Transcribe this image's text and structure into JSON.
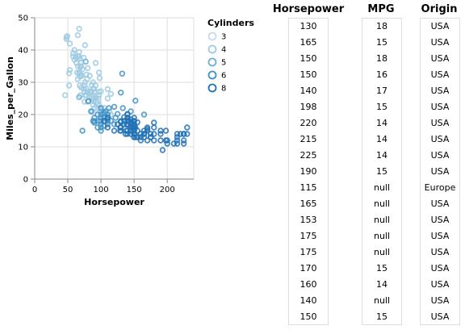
{
  "chart_data": {
    "type": "scatter",
    "xlabel": "Horsepower",
    "ylabel": "Miles_per_Gallon",
    "xlim": [
      0,
      240
    ],
    "ylim": [
      0,
      50
    ],
    "x_ticks": [
      "0",
      "50",
      "100",
      "150",
      "200"
    ],
    "y_ticks": [
      "0",
      "10",
      "20",
      "30",
      "40",
      "50"
    ],
    "grid": true,
    "legend": {
      "title": "Cylinders",
      "placement": "right",
      "entries": [
        "3",
        "4",
        "5",
        "6",
        "8"
      ]
    },
    "colors": {
      "3": "#c6dbef",
      "4": "#9ecae1",
      "5": "#6baed6",
      "6": "#4292c6",
      "8": "#2171b5"
    },
    "series": [
      {
        "name": "4",
        "points": [
          [
            46,
            26
          ],
          [
            48,
            43.4
          ],
          [
            48,
            44
          ],
          [
            49,
            44.3
          ],
          [
            52,
            29
          ],
          [
            52,
            32.8
          ],
          [
            53,
            33.8
          ],
          [
            58,
            39
          ],
          [
            60,
            37
          ],
          [
            62,
            37.7
          ],
          [
            63,
            36
          ],
          [
            65,
            38
          ],
          [
            65,
            35
          ],
          [
            65,
            31
          ],
          [
            65,
            44.6
          ],
          [
            67,
            39.4
          ],
          [
            67,
            33
          ],
          [
            67,
            38
          ],
          [
            67,
            46.6
          ],
          [
            68,
            29
          ],
          [
            68,
            31.8
          ],
          [
            68,
            37.3
          ],
          [
            68,
            32.9
          ],
          [
            69,
            34.7
          ],
          [
            69,
            26
          ],
          [
            70,
            36.1
          ],
          [
            70,
            32.3
          ],
          [
            70,
            28.4
          ],
          [
            70,
            35
          ],
          [
            71,
            32
          ],
          [
            72,
            34.1
          ],
          [
            74,
            28
          ],
          [
            74,
            37.6
          ],
          [
            75,
            29
          ],
          [
            75,
            24
          ],
          [
            75,
            27
          ],
          [
            76,
            30
          ],
          [
            76,
            26
          ],
          [
            78,
            28
          ],
          [
            78,
            32.4
          ],
          [
            78,
            26
          ],
          [
            79,
            31
          ],
          [
            80,
            27.2
          ],
          [
            80,
            34.4
          ],
          [
            80,
            24
          ],
          [
            81,
            26.6
          ],
          [
            83,
            32
          ],
          [
            84,
            27
          ],
          [
            85,
            27
          ],
          [
            86,
            25.5
          ],
          [
            86,
            29.1
          ],
          [
            87,
            21
          ],
          [
            88,
            23
          ],
          [
            88,
            28
          ],
          [
            88,
            26
          ],
          [
            88,
            25
          ],
          [
            88,
            30
          ],
          [
            90,
            22
          ],
          [
            90,
            24
          ],
          [
            90,
            28
          ],
          [
            90,
            27
          ],
          [
            92,
            23.9
          ],
          [
            92,
            24.3
          ],
          [
            92,
            25
          ],
          [
            95,
            22
          ],
          [
            95,
            23
          ],
          [
            95,
            24
          ],
          [
            96,
            25
          ],
          [
            97,
            26
          ],
          [
            97,
            23
          ],
          [
            97,
            27
          ],
          [
            97,
            22
          ],
          [
            97,
            33
          ],
          [
            98,
            31.3
          ],
          [
            100,
            21
          ],
          [
            100,
            27.2
          ],
          [
            105,
            22
          ],
          [
            110,
            25
          ],
          [
            110,
            27.9
          ],
          [
            113,
            21
          ],
          [
            115,
            20
          ],
          [
            115,
            26.4
          ],
          [
            53,
            42
          ],
          [
            60,
            40
          ],
          [
            76,
            41.5
          ],
          [
            58,
            38
          ],
          [
            64,
            33
          ],
          [
            92,
            29
          ],
          [
            92,
            36
          ]
        ]
      },
      {
        "name": "5",
        "points": [
          [
            67,
            25.4
          ],
          [
            77,
            36.4
          ],
          [
            103,
            20.3
          ]
        ]
      },
      {
        "name": "3",
        "points": [
          [
            90,
            21.5
          ],
          [
            97,
            23.7
          ],
          [
            100,
            18
          ],
          [
            110,
            19
          ]
        ]
      },
      {
        "name": "6",
        "points": [
          [
            72,
            15
          ],
          [
            81,
            24.2
          ],
          [
            85,
            21
          ],
          [
            88,
            18
          ],
          [
            90,
            19
          ],
          [
            90,
            17.5
          ],
          [
            90,
            18
          ],
          [
            95,
            20
          ],
          [
            97,
            18
          ],
          [
            100,
            20
          ],
          [
            100,
            18
          ],
          [
            100,
            19
          ],
          [
            100,
            17
          ],
          [
            100,
            16
          ],
          [
            100,
            15
          ],
          [
            105,
            18
          ],
          [
            105,
            19
          ],
          [
            105,
            20.5
          ],
          [
            105,
            16.5
          ],
          [
            107,
            21
          ],
          [
            110,
            18
          ],
          [
            110,
            20
          ],
          [
            110,
            19.2
          ],
          [
            110,
            18.5
          ],
          [
            110,
            17
          ],
          [
            112,
            22
          ],
          [
            115,
            18.1
          ],
          [
            120,
            22.4
          ],
          [
            120,
            17
          ],
          [
            122,
            19
          ],
          [
            125,
            20.2
          ],
          [
            130,
            26.8
          ],
          [
            132,
            32.7
          ],
          [
            133,
            22
          ],
          [
            140,
            19
          ],
          [
            145,
            21
          ],
          [
            152,
            24.3
          ],
          [
            165,
            20
          ],
          [
            95,
            16
          ],
          [
            100,
            22
          ]
        ]
      },
      {
        "name": "8",
        "points": [
          [
            130,
            18
          ],
          [
            165,
            15
          ],
          [
            150,
            18
          ],
          [
            150,
            16
          ],
          [
            140,
            17
          ],
          [
            198,
            15
          ],
          [
            220,
            14
          ],
          [
            215,
            14
          ],
          [
            225,
            14
          ],
          [
            190,
            15
          ],
          [
            170,
            15
          ],
          [
            160,
            14
          ],
          [
            150,
            15
          ],
          [
            225,
            14
          ],
          [
            215,
            13
          ],
          [
            200,
            11
          ],
          [
            210,
            11
          ],
          [
            193,
            9
          ],
          [
            175,
            13
          ],
          [
            180,
            12
          ],
          [
            150,
            13
          ],
          [
            140,
            14
          ],
          [
            150,
            14
          ],
          [
            170,
            12
          ],
          [
            160,
            13
          ],
          [
            165,
            13
          ],
          [
            190,
            12
          ],
          [
            155,
            13
          ],
          [
            180,
            14
          ],
          [
            145,
            14
          ],
          [
            230,
            16
          ],
          [
            150,
            16
          ],
          [
            140,
            15
          ],
          [
            130,
            16
          ],
          [
            150,
            19
          ],
          [
            145,
            15
          ],
          [
            130,
            15
          ],
          [
            145,
            16
          ],
          [
            150,
            14
          ],
          [
            198,
            12
          ],
          [
            160,
            12
          ],
          [
            215,
            12
          ],
          [
            225,
            11
          ],
          [
            175,
            14
          ],
          [
            153,
            13
          ],
          [
            170,
            16
          ],
          [
            140,
            18
          ],
          [
            137,
            14
          ],
          [
            150,
            13
          ],
          [
            148,
            16
          ],
          [
            129,
            16
          ],
          [
            138,
            15
          ],
          [
            145,
            17
          ],
          [
            150,
            15
          ],
          [
            150,
            17
          ],
          [
            155,
            15
          ],
          [
            140,
            19
          ],
          [
            135,
            18
          ],
          [
            120,
            15
          ],
          [
            110,
            16
          ],
          [
            105,
            18
          ],
          [
            145,
            17.5
          ],
          [
            170,
            15.5
          ],
          [
            180,
            17.5
          ],
          [
            150,
            16.5
          ],
          [
            140,
            20.2
          ],
          [
            130,
            17.7
          ],
          [
            145,
            18.5
          ],
          [
            125,
            17
          ],
          [
            150,
            18
          ],
          [
            110,
            19
          ],
          [
            139,
            16.9
          ],
          [
            155,
            17.6
          ],
          [
            142,
            18.1
          ],
          [
            135,
            19.2
          ],
          [
            145,
            16.5
          ],
          [
            165,
            14
          ],
          [
            190,
            14
          ],
          [
            230,
            14
          ],
          [
            180,
            16
          ],
          [
            129,
            15
          ],
          [
            152,
            16
          ],
          [
            150,
            17
          ],
          [
            140,
            20
          ],
          [
            135,
            17
          ],
          [
            215,
            11
          ],
          [
            200,
            12
          ],
          [
            225,
            12
          ],
          [
            165,
            14
          ],
          [
            175,
            13
          ]
        ]
      }
    ]
  },
  "table": {
    "columns": [
      {
        "title": "Horsepower",
        "values": [
          "130",
          "165",
          "150",
          "150",
          "140",
          "198",
          "220",
          "215",
          "225",
          "190",
          "115",
          "165",
          "153",
          "175",
          "175",
          "170",
          "160",
          "140",
          "150"
        ]
      },
      {
        "title": "MPG",
        "values": [
          "18",
          "15",
          "18",
          "16",
          "17",
          "15",
          "14",
          "14",
          "14",
          "15",
          "null",
          "null",
          "null",
          "null",
          "null",
          "15",
          "14",
          "null",
          "15"
        ]
      },
      {
        "title": "Origin",
        "values": [
          "USA",
          "USA",
          "USA",
          "USA",
          "USA",
          "USA",
          "USA",
          "USA",
          "USA",
          "USA",
          "Europe",
          "USA",
          "USA",
          "USA",
          "USA",
          "USA",
          "USA",
          "USA",
          "USA"
        ]
      }
    ]
  }
}
